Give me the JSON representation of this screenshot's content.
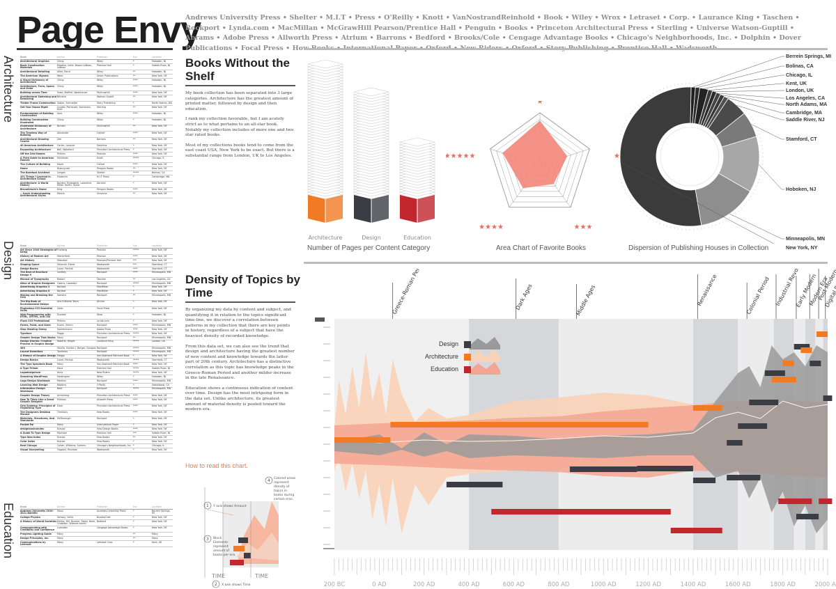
{
  "title": "Page Envy",
  "publishers": "Andrews University Press • Shelter • M.I.T • Press • O'Reilly • Knott • VanNostrandReinhold • Book • Wiley • Wrox • Letraset • Corp. • Laurance King • Taschen • Rockport • Lynda.com • MacMillan • McGrawHill Pearson/Prentice Hall • Penguin • Books • Princeton Architectural Press • Sterling • Universe Watson-Guptill • Abrams • Adobe Press • Allworth Press • Atrium • Barrons • Bedford • Brooks/Cole • Cengage Advantage Books • Chicago's Neighborhoods, Inc. • Dolphin • Dover Publications • Focal Press • How Books • International Paper • Oxford • New Riders • Oxford • Story Publishing • Prentice Hall • Wadsworth",
  "sidebar": {
    "sections": [
      "Architecture",
      "Design",
      "Education"
    ],
    "header": [
      "Book",
      "Author",
      "Publisher",
      "Fav",
      "Location"
    ],
    "architecture_rows": [
      [
        "Architectural Graphics",
        "Ching",
        "Wiley",
        "*",
        "Hoboken, NJ"
      ],
      [
        "Basic Construction Materials",
        "Marotta, Collis, Brown LeBeau, LeBeau",
        "Prentice Hall",
        "*",
        "Saddle River, NJ"
      ],
      [
        "Architectural Detailing",
        "Allen, Rand",
        "Wiley",
        "**",
        "Hoboken, NJ"
      ],
      [
        "The American Vignola",
        "Ware",
        "Dover Publications",
        "**",
        "New York, NY"
      ],
      [
        "A Visual Dictionary of Architecture",
        "Ching",
        "Wiley",
        "****",
        "Hoboken, NJ"
      ],
      [
        "Architecture, Form, Space, and Order",
        "Ching",
        "Wiley",
        "****",
        "Hoboken, NJ"
      ],
      [
        "Building across Time",
        "Fazio, Moffett, Wodehouse",
        "McGrawHill",
        "****",
        "New York, NY"
      ],
      [
        "Architectural Sketching and Rendering",
        "Bitmern",
        "Watson-Guptill",
        "**",
        "New York, NY"
      ],
      [
        "Timber Frame Construction",
        "Sobon, Schroeder",
        "Story Publishing",
        "*",
        "North Adams, MA"
      ],
      [
        "Get Your House Right",
        "Cusato, Pierlauski, Sammons, Krier",
        "Sterling",
        "**",
        "New York, NY"
      ],
      [
        "Fundamentals of Building Construction",
        "Iano",
        "Wiley",
        "****",
        "Hoboken, NJ"
      ],
      [
        "Building Construction Illustrated",
        "Ching",
        "Wiley",
        "*",
        "Hoboken, NJ"
      ],
      [
        "Illustrated Dictionary of Architecture",
        "Burden",
        "McGrawHill",
        "**",
        "New York, NY"
      ],
      [
        "The Timeless Way of Building",
        "Alexander",
        "Oxford",
        "****",
        "New York, NY"
      ],
      [
        "Architectural Drawing Course",
        "Zell",
        "Barrons",
        "**",
        "New York, NY"
      ],
      [
        "40 American Architecture",
        "Carter, Lavoyer",
        "Dolphins",
        "*",
        "New York, NY"
      ],
      [
        "Expanding Architecture",
        "Bell, Wakeford",
        "Princeton Architectural Press",
        "*",
        "New York, NY"
      ],
      [
        "Off the Grid Homes",
        "Perkins",
        "Pearson",
        "****",
        "New York, NY"
      ],
      [
        "A Field Guide to American Houses",
        "McAlester",
        "Knott",
        "*****",
        "Chicago, IL"
      ],
      [
        "The Culture of Building",
        "Davis",
        "Oxford",
        "****",
        "New York, NY"
      ],
      [
        "Home",
        "Rybczynski",
        "Penguin Books",
        "**",
        "New York, NY"
      ],
      [
        "The Barefoot Architect",
        "Lengen",
        "Shelter",
        "*****",
        "Bolinas, CA"
      ],
      [
        "101 Things I Learned in Architecture School",
        "Frederick",
        "M.I.T Press",
        "*",
        "Cambridge, MA"
      ],
      [
        "Architecture: A World History",
        "Borden, Elyaswenk, Lawrence, Miller, Smith, Taylor",
        "Abrams",
        "*",
        "New York, NY"
      ],
      [
        "Brunelleschi's Dome",
        "King",
        "Penguin Books",
        "****",
        "New York, NY"
      ],
      [
        "...Iconic Understanding Architectural Styles",
        "Melvin",
        "Universe",
        "**",
        "New York, NY"
      ]
    ],
    "design_rows": [
      [
        "Art Since 1940 Strategies of being",
        "Fineberg",
        "Pearson",
        "*****",
        "New York, NY"
      ],
      [
        "History of Modern Art",
        "Heinerfield",
        "Pearson",
        "****",
        "New York, NY"
      ],
      [
        "Art History",
        "Stokstad",
        "Pearson/Prentice Hall",
        "***",
        "New York, NY"
      ],
      [
        "Shaping Space",
        "Zelanski, Fisher",
        "Wadsworth",
        "***",
        "Stamford, CT"
      ],
      [
        "Design Basics",
        "Lauer, Pentak",
        "Wadsworth",
        "****",
        "Stamford, CT"
      ],
      [
        "The Best of Brochure Design 9",
        "Godfrey",
        "Rockport",
        "****",
        "Minneapolis, MN"
      ],
      [
        "Manual of Typography",
        "Bodoni",
        "Taschen",
        "**",
        "Los Angeles, CA"
      ],
      [
        "Atlas of Graphic Designers",
        "Owens, Lipowsky",
        "Rockport",
        "*****",
        "Minneapolis, MN"
      ],
      [
        "Advertising Graphics 3",
        "Borlase",
        "MacMillan",
        "*",
        "New York, NY"
      ],
      [
        "Advertising Graphics 6",
        "Borlase",
        "MacMillan",
        "*",
        "New York, NY"
      ],
      [
        "Making and Breaking the Grid",
        "Samara",
        "Rockport",
        "**",
        "Minneapolis, MN"
      ],
      [
        "The Big Book of Environmental Design",
        "Ana Editorial Team",
        "Atrium",
        "*",
        "New York, NY"
      ],
      [
        "Photoshop CS3 Essential Skills",
        "Galer",
        "Focal Press",
        "*",
        "New York, NY"
      ],
      [
        "Web Programming with HTML, XHTML, and CSS",
        "Duckett",
        "Wrox",
        "*",
        "Hoboken, NJ"
      ],
      [
        "Flash CS3 Professional",
        "Perkins",
        "Lynda.com",
        "*",
        "New York, NY"
      ],
      [
        "Forms, Folds, and Sizes",
        "Evans, Sherin",
        "Rockport",
        "****",
        "Minneapolis, MN"
      ],
      [
        "Stop Stealing Sheep",
        "Spiekermann",
        "Adobe Press",
        "****",
        "New York, NY"
      ],
      [
        "Typeface",
        "Poggs",
        "Princeton Architectural Press",
        "*****",
        "New York, NY"
      ],
      [
        "Graphic Design That Works",
        "Many",
        "Rockport",
        "**",
        "Minneapolis, MN"
      ],
      [
        "Design Diaries: Creative Process in Graphic Design",
        "Roberts, Wright",
        "Laurance King",
        "*****",
        "London, UK"
      ],
      [
        "365",
        "Sevilla, Gordon J. Berger, Douglas",
        "Rockport",
        "*****",
        "Minneapolis, MN"
      ],
      [
        "Layout Essentials",
        "Tondreau",
        "Rockport",
        "*****",
        "Minneapolis, MN"
      ],
      [
        "A History of Graphic Design",
        "Meggs",
        "Van Nostrand Reinhold Book",
        "*",
        "New York, NY"
      ],
      [
        "Design Basics",
        "Lauer, Pentak",
        "Wadsworth",
        "*****",
        "Stamford, CT"
      ],
      [
        "The Type Specimen Book",
        "Many",
        "Van Nostrand Reinhold Book",
        "****",
        "New York, NY"
      ],
      [
        "A Type Primer",
        "Kane",
        "Prentice Hall",
        "*****",
        "Saddle River, NJ"
      ],
      [
        "Logodesignlove",
        "Airey",
        "New Riders",
        "*****",
        "New York, NY"
      ],
      [
        "Smashing WordPress",
        "Hedengren",
        "Wiley",
        "*",
        "Hoboken, NJ"
      ],
      [
        "Logo Design Workbook",
        "Markins",
        "Rockport",
        "****",
        "Minneapolis, MN"
      ],
      [
        "Learning Web Design",
        "Robbins",
        "O'Reilly",
        "*",
        "Sebastopol, CA"
      ],
      [
        "Information Design Workbook",
        "Baer",
        "Rockport",
        "*****",
        "Minneapolis, MN"
      ],
      [
        "Graphic Design Theory",
        "Armstrong",
        "Princeton Architectural Press",
        "****",
        "New York, NY"
      ],
      [
        "How To Think Like a Great Graphic Designer",
        "Millman",
        "Allworth Press",
        "****",
        "New York, NY"
      ],
      [
        "Grid Systems: Principles of Organizing Type",
        "Elam",
        "Princeton Architectural Press",
        "****",
        "New York, NY"
      ],
      [
        "The Designers Desktop Manual",
        "Timmons",
        "How Books",
        "****",
        "New York, NY"
      ],
      [
        "Materials, Structures, And Standards",
        "McDonough",
        "Rockport",
        "*",
        "New York, NY"
      ],
      [
        "Pocket Pal",
        "Many",
        "International Paper",
        "*",
        "New York, NY"
      ],
      [
        "designbasicsindex",
        "Krause",
        "How Design Books",
        "****",
        "New York, NY"
      ],
      [
        "A Guide To Type Design",
        "Morrison",
        "Prentice Hall",
        "***",
        "Saddle River, NJ"
      ],
      [
        "Type Idea Index",
        "Krause",
        "How Books",
        "**",
        "New York, NY"
      ],
      [
        "Color Index",
        "Krause",
        "How Books",
        "*",
        "New York, NY"
      ],
      [
        "Real Chicago",
        "Cohen, Williams, Somers",
        "Chicago's Neighborhoods, Inc.",
        "*",
        "Chicago, IL"
      ],
      [
        "Visual Storytelling",
        "Osgood, Hinshaw",
        "Wadsworth",
        "*",
        "New York, NY"
      ]
    ],
    "education_rows": [
      [
        "Andrews University 2010-2011 Bulletin",
        "Many",
        "Andrews University Press",
        "*",
        "Berrein Springs, MI"
      ],
      [
        "College Physics",
        "Serway, Vuille",
        "Brooks/Cole",
        "*",
        "New York, NY"
      ],
      [
        "A History of World Societies",
        "McKay, Hill, Buckler, Ebrey, Beck, Crowston, Wiesner-hanks",
        "Bedford",
        "*",
        "New York, NY"
      ],
      [
        "Communicating with Credibility and Confidence",
        "Lumsden",
        "Cengage Advantage Books",
        "*",
        "New York, NY"
      ],
      [
        "Progress Lighting Guide",
        "Many",
        "",
        "**",
        "Many"
      ],
      [
        "Design Principles, Inc.",
        "Many",
        "",
        "**",
        "Many"
      ],
      [
        "Communications by Letraset",
        "Many",
        "Letraset Corp.",
        "*",
        "Kent, UK"
      ]
    ]
  },
  "books_section": {
    "title": "Books Without the Shelf",
    "paragraphs": [
      "My book collection has been separated into 3 large categories. Architecture has the greatest amount of printed matter, followed by design and then education.",
      "I rank my collection favorable, but I am acutely strict as to what pertains to an all-star book. Notably my collection includes of more one and two star rated books.",
      "Most of my collections books tend to come from the east coast USA, New York to be exact. But there is a substantial range from London, UK to Los Angeles."
    ]
  },
  "density_section": {
    "title": "Density of Topics by Time",
    "paragraphs": [
      "By organizing my data by content and subject, and quantifying it in relation to the topics significant time-line, we discover a correlation between patterns in my collection that there are key points in history, regardless of a subject that have the heaviest density of recorded knowledge.",
      "From this data set, we can also see the trend that design and architecture having the greatest number of new content and knowledge towards the latter part of 20th century. Architecture has a distinctive correlation as this topic has knowledge peaks in the Greece-Roman Period and another milder increase in the late Renaissance.",
      "Education shows a continuous indication of content over time. Design has the most intriguing form in the data set. Unlike architecture, its greatest amount of material density is pooled toward the modern era."
    ],
    "how_to_read": "How to read this chart.",
    "how_notes": {
      "n1": "1",
      "n1_text": "Y axis shows Amount",
      "n2": "2",
      "n2_text": "X axis shows Time",
      "n3": "3",
      "n3_text": "Block Elements represent amount of books per era.",
      "n4": "4",
      "n4_text": "Colored areas represent density of topics in books during certain eras.",
      "time_label": "TIME"
    }
  },
  "chart_data": [
    {
      "type": "bar",
      "title": "Number of Pages per Content Category",
      "categories": [
        "Architecture",
        "Design",
        "Education"
      ],
      "values": [
        100,
        82,
        52
      ],
      "colors": [
        "#f07b24",
        "#3a3d44",
        "#c1272d"
      ]
    },
    {
      "type": "radar",
      "title": "Area Chart of Favorite Books",
      "categories": [
        "★",
        "★★",
        "★★★",
        "★★★★",
        "★★★★★"
      ],
      "values": [
        0.85,
        0.55,
        0.45,
        0.55,
        0.75
      ],
      "color": "#f4867a"
    },
    {
      "type": "pie",
      "title": "Dispersion of Publishing Houses in Collection",
      "labels": [
        "Berrein Springs, MI",
        "Bolinas, CA",
        "Chicago, IL",
        "Kent, UK",
        "London, UK",
        "Los Angeles, CA",
        "North Adams, MA",
        "Cambridge, MA",
        "Saddle River, NJ",
        "Stamford, CT",
        "Hoboken, NJ",
        "Minneapolis, MN",
        "New York, NY"
      ],
      "values": [
        1,
        1,
        2,
        1,
        1,
        1,
        1,
        1,
        5,
        6,
        13,
        14,
        53
      ],
      "colors": [
        "#1f1f1f",
        "#2c2c2c",
        "#232323",
        "#3a3a3a",
        "#2a2a2a",
        "#444",
        "#383838",
        "#505050",
        "#4a4a4a",
        "#7a7a7a",
        "#a7a7a7",
        "#8e8e8e",
        "#3b3b3b"
      ]
    },
    {
      "type": "area",
      "title": "",
      "x_ticks": [
        "200 BC",
        "0 AD",
        "200 AD",
        "400 AD",
        "600 AD",
        "800 AD",
        "1000 AD",
        "1200 AD",
        "1400 AD",
        "1600 AD",
        "1800 AD",
        "2000 AD"
      ],
      "periods": [
        "Greece-Roman Period",
        "Dark Ages",
        "Middle Ages",
        "Renaissance",
        "Colonial Period",
        "Industrial Revolution",
        "Early Modern",
        "Modern Era",
        "Post Modern Era",
        "Digital Revolution"
      ],
      "legend": [
        "Design",
        "Architecture",
        "Education"
      ],
      "series_colors": {
        "Design": "#3a3d44",
        "Architecture": "#f07b24",
        "Education": "#c1272d"
      }
    }
  ]
}
